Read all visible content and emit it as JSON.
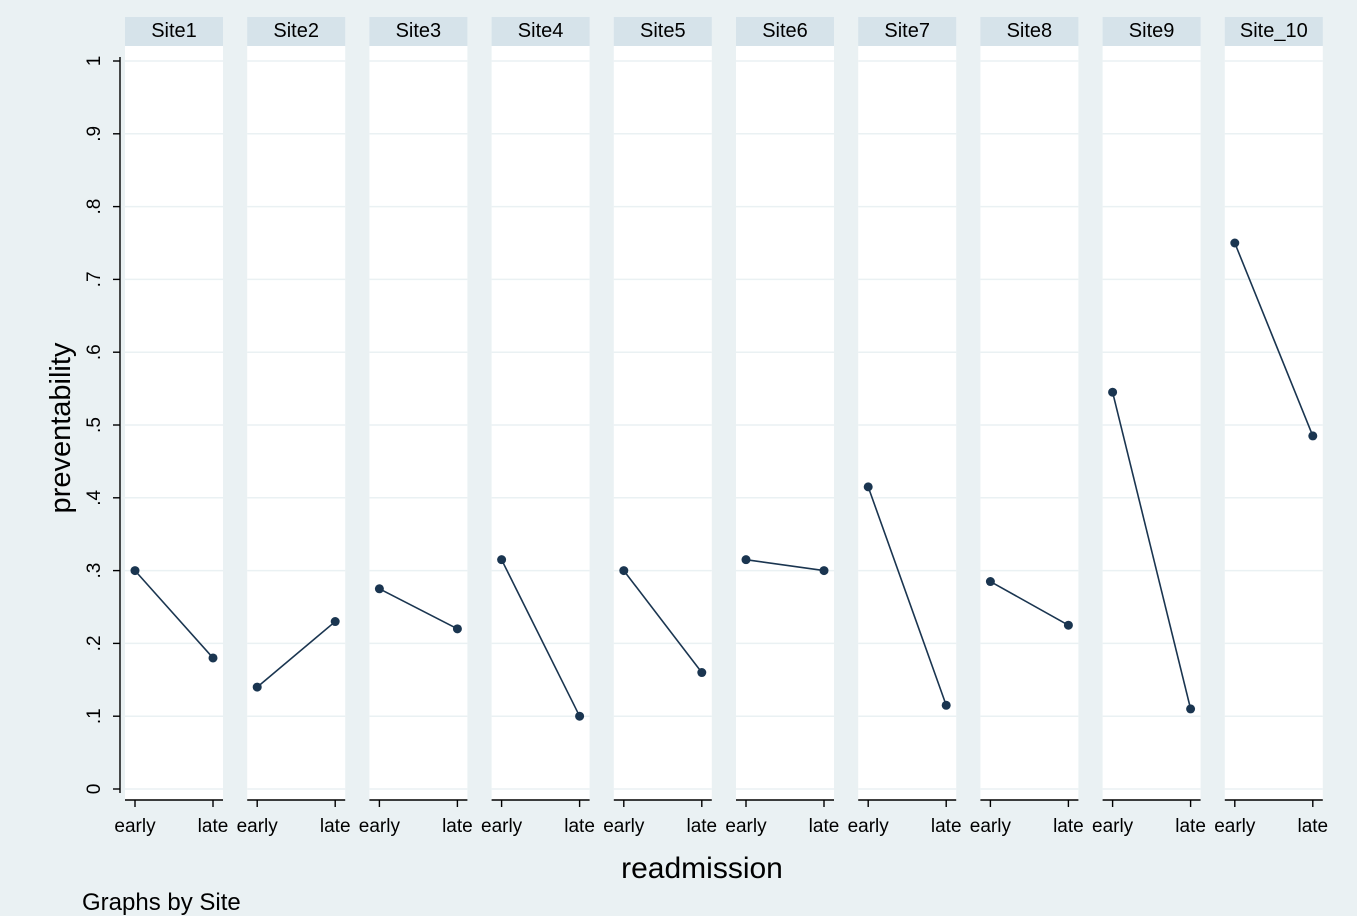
{
  "chart_data": {
    "type": "line",
    "xlabel": "readmission",
    "ylabel": "preventability",
    "note": "Graphs by Site",
    "categories": [
      "early",
      "late"
    ],
    "ylim": [
      0,
      1
    ],
    "yticks": [
      {
        "value": 0,
        "label": "0"
      },
      {
        "value": 0.1,
        "label": ".1"
      },
      {
        "value": 0.2,
        "label": ".2"
      },
      {
        "value": 0.3,
        "label": ".3"
      },
      {
        "value": 0.4,
        "label": ".4"
      },
      {
        "value": 0.5,
        "label": ".5"
      },
      {
        "value": 0.6,
        "label": ".6"
      },
      {
        "value": 0.7,
        "label": ".7"
      },
      {
        "value": 0.8,
        "label": ".8"
      },
      {
        "value": 0.9,
        "label": ".9"
      },
      {
        "value": 1,
        "label": "1"
      }
    ],
    "grid": true,
    "panels": [
      {
        "name": "Site1",
        "values": [
          0.3,
          0.18
        ]
      },
      {
        "name": "Site2",
        "values": [
          0.14,
          0.23
        ]
      },
      {
        "name": "Site3",
        "values": [
          0.275,
          0.22
        ]
      },
      {
        "name": "Site4",
        "values": [
          0.315,
          0.1
        ]
      },
      {
        "name": "Site5",
        "values": [
          0.3,
          0.16
        ]
      },
      {
        "name": "Site6",
        "values": [
          0.315,
          0.3
        ]
      },
      {
        "name": "Site7",
        "values": [
          0.415,
          0.115
        ]
      },
      {
        "name": "Site8",
        "values": [
          0.285,
          0.225
        ]
      },
      {
        "name": "Site9",
        "values": [
          0.545,
          0.11
        ]
      },
      {
        "name": "Site_10",
        "values": [
          0.75,
          0.485
        ]
      }
    ]
  },
  "colors": {
    "background": "#eaf1f3",
    "plot": "#ffffff",
    "grid": "#eaf1f3",
    "strip": "#d6e3ea",
    "line": "#1a3550",
    "text": "#000000"
  }
}
